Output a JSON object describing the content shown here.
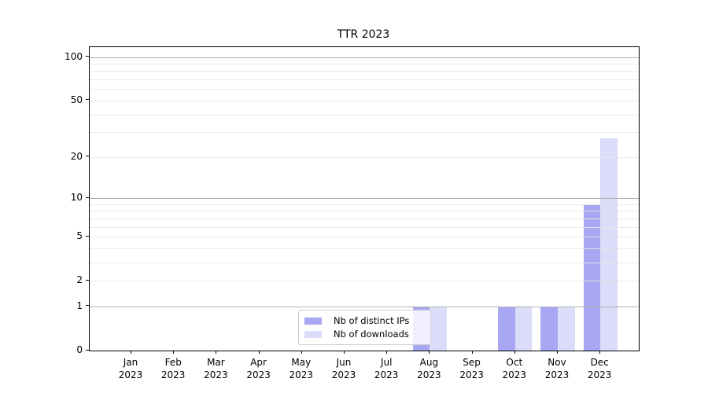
{
  "chart_data": {
    "type": "bar",
    "title": "TTR 2023",
    "categories": [
      "Jan 2023",
      "Feb 2023",
      "Mar 2023",
      "Apr 2023",
      "May 2023",
      "Jun 2023",
      "Jul 2023",
      "Aug 2023",
      "Sep 2023",
      "Oct 2023",
      "Nov 2023",
      "Dec 2023"
    ],
    "series": [
      {
        "name": "Nb of distinct IPs",
        "color": "#a7a7f3",
        "values": [
          0,
          0,
          0,
          0,
          0,
          0,
          0,
          1,
          0,
          1,
          1,
          9
        ]
      },
      {
        "name": "Nb of downloads",
        "color": "#dbdbfa",
        "values": [
          0,
          0,
          0,
          0,
          0,
          0,
          0,
          1,
          0,
          1,
          1,
          27
        ]
      }
    ],
    "xlabel": "",
    "ylabel": "",
    "yscale": "log1p",
    "ylim": [
      0,
      117
    ],
    "yticks": [
      0,
      1,
      2,
      5,
      10,
      20,
      50,
      100
    ],
    "ytick_labels": [
      "0",
      "1",
      "2",
      "5",
      "10",
      "20",
      "50",
      "100"
    ],
    "gridlines_major": [
      1,
      10,
      100
    ],
    "gridlines_minor": [
      2,
      3,
      4,
      5,
      6,
      7,
      8,
      9,
      20,
      30,
      40,
      50,
      60,
      70,
      80,
      90
    ],
    "grid": true,
    "legend": {
      "entries": [
        "Nb of distinct IPs",
        "Nb of downloads"
      ],
      "position": "lower center"
    },
    "colors": {
      "major_grid": "#b0b0b0",
      "minor_grid": "#e8e8e8",
      "spine": "#000000",
      "text": "#000000",
      "legend_border": "#cccccc"
    }
  }
}
